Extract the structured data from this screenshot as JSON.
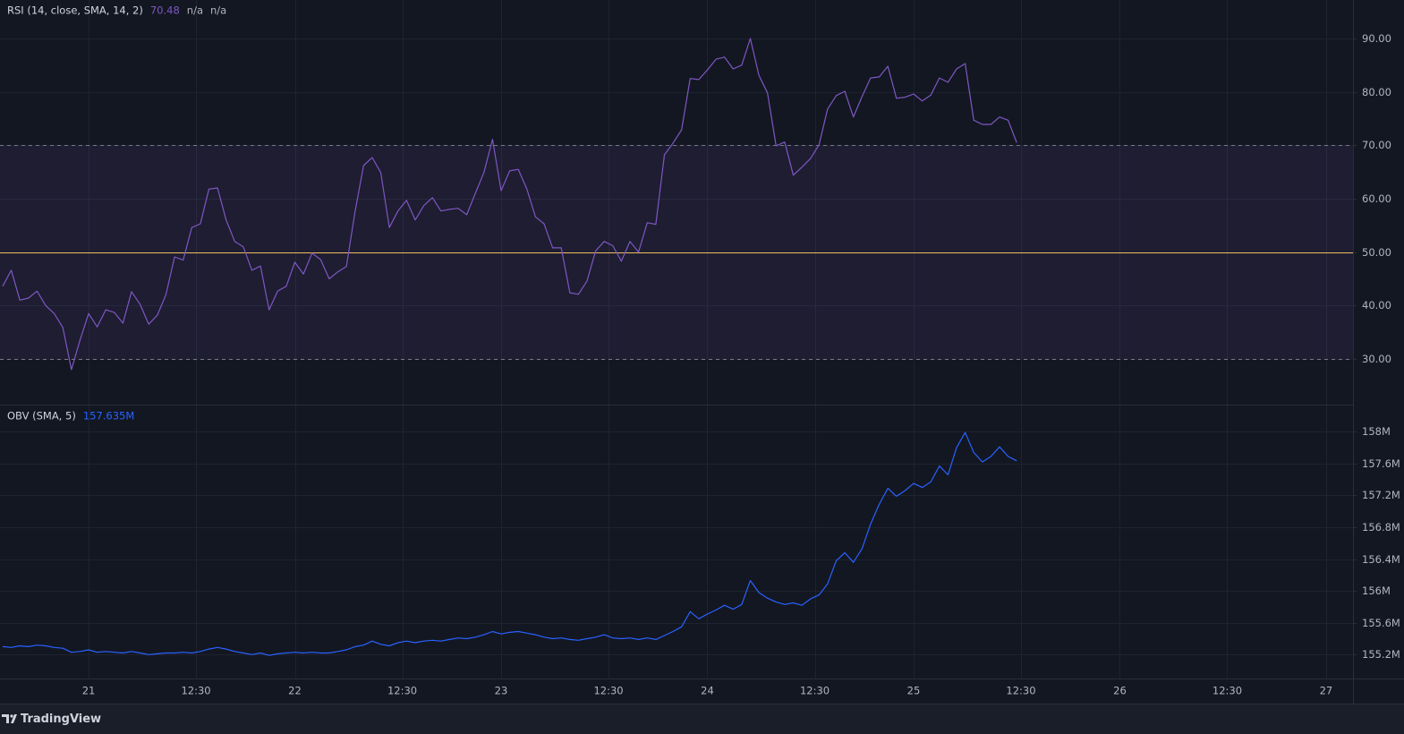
{
  "chart_data": [
    {
      "type": "line",
      "title": "RSI (14, close, SMA, 14, 2)",
      "legend_values": [
        "70.48",
        "n/a",
        "n/a"
      ],
      "color": "#7e57c2",
      "band": [
        30,
        70
      ],
      "midline": 50,
      "band_color": "#7e57c2",
      "midline_color": "#f0c060",
      "xlim": [
        -10.31,
        147.13
      ],
      "ylim": [
        21.45,
        97.2
      ],
      "yticks": [
        {
          "value": 30,
          "label": "30.00"
        },
        {
          "value": 40,
          "label": "40.00"
        },
        {
          "value": 50,
          "label": "50.00"
        },
        {
          "value": 60,
          "label": "60.00"
        },
        {
          "value": 70,
          "label": "70.00"
        },
        {
          "value": 80,
          "label": "80.00"
        },
        {
          "value": 90,
          "label": "90.00"
        }
      ],
      "x": [
        -10,
        -9,
        -8,
        -7,
        -6,
        -5,
        -4,
        -3,
        -2,
        -1,
        0,
        1,
        2,
        3,
        4,
        5,
        6,
        7,
        8,
        9,
        10,
        11,
        12,
        13,
        14,
        15,
        16,
        17,
        18,
        19,
        20,
        21,
        22,
        23,
        24,
        25,
        26,
        27,
        28,
        29,
        30,
        31,
        32,
        33,
        34,
        35,
        36,
        37,
        38,
        39,
        40,
        41,
        42,
        43,
        44,
        45,
        46,
        47,
        48,
        49,
        50,
        51,
        52,
        53,
        54,
        55,
        56,
        57,
        58,
        59,
        60,
        61,
        62,
        63,
        64,
        65,
        66,
        67,
        68,
        69,
        70,
        71,
        72,
        73,
        74,
        75,
        76,
        77,
        78,
        79,
        80,
        81,
        82,
        83,
        84,
        85,
        86,
        87,
        88,
        89,
        90,
        91,
        92,
        93,
        94,
        95,
        96,
        97,
        98,
        99,
        100,
        101,
        102,
        103,
        104,
        105,
        106,
        107,
        108
      ],
      "values": [
        43.6,
        46.6,
        41,
        41.4,
        42.7,
        40,
        38.5,
        35.9,
        28,
        33.5,
        38.5,
        36,
        39.2,
        38.7,
        36.7,
        42.6,
        40.2,
        36.5,
        38.2,
        42,
        49.1,
        48.5,
        54.6,
        55.3,
        61.8,
        62,
        56,
        52,
        51,
        46.6,
        47.4,
        39.2,
        42.7,
        43.6,
        48.1,
        45.9,
        49.8,
        48.6,
        45,
        46.3,
        47.3,
        57.5,
        66.2,
        67.7,
        64.9,
        54.6,
        57.7,
        59.7,
        56,
        58.7,
        60.2,
        57.7,
        58,
        58.2,
        57,
        61,
        64.9,
        71.1,
        61.5,
        65.2,
        65.5,
        61.8,
        56.6,
        55.3,
        50.8,
        50.8,
        42.4,
        42.1,
        44.6,
        50.2,
        52,
        51.2,
        48.3,
        52,
        50,
        55.5,
        55.2,
        68.2,
        70.4,
        72.9,
        82.5,
        82.3,
        84.1,
        86.1,
        86.5,
        84.3,
        85,
        90,
        83.1,
        79.8,
        69.9,
        70.6,
        64.4,
        65.9,
        67.5,
        70.1,
        76.8,
        79.3,
        80.1,
        75.3,
        79.1,
        82.6,
        82.8,
        84.8,
        78.8,
        79,
        79.6,
        78.3,
        79.4,
        82.6,
        81.8,
        84.3,
        85.3,
        74.7,
        73.9,
        73.9,
        75.3,
        74.7,
        70.48
      ]
    },
    {
      "type": "line",
      "title": "OBV (SMA, 5)",
      "legend_values": [
        "157.635M"
      ],
      "color": "#2962ff",
      "xlim": [
        -10.31,
        147.13
      ],
      "ylim": [
        154.9,
        158.33
      ],
      "yticks": [
        {
          "value": 155.2,
          "label": "155.2M"
        },
        {
          "value": 155.6,
          "label": "155.6M"
        },
        {
          "value": 156,
          "label": "156M"
        },
        {
          "value": 156.4,
          "label": "156.4M"
        },
        {
          "value": 156.8,
          "label": "156.8M"
        },
        {
          "value": 157.2,
          "label": "157.2M"
        },
        {
          "value": 157.6,
          "label": "157.6M"
        },
        {
          "value": 158,
          "label": "158M"
        }
      ],
      "xticks": [
        {
          "value": 0,
          "label": "21"
        },
        {
          "value": 12.5,
          "label": "12:30"
        },
        {
          "value": 24,
          "label": "22"
        },
        {
          "value": 36.5,
          "label": "12:30"
        },
        {
          "value": 48,
          "label": "23"
        },
        {
          "value": 60.5,
          "label": "12:30"
        },
        {
          "value": 72,
          "label": "24"
        },
        {
          "value": 84.5,
          "label": "12:30"
        },
        {
          "value": 96,
          "label": "25"
        },
        {
          "value": 108.5,
          "label": "12:30"
        },
        {
          "value": 120,
          "label": "26"
        },
        {
          "value": 132.5,
          "label": "12:30"
        },
        {
          "value": 144,
          "label": "27"
        }
      ],
      "x": [
        -10,
        -9,
        -8,
        -7,
        -6,
        -5,
        -4,
        -3,
        -2,
        -1,
        0,
        1,
        2,
        3,
        4,
        5,
        6,
        7,
        8,
        9,
        10,
        11,
        12,
        13,
        14,
        15,
        16,
        17,
        18,
        19,
        20,
        21,
        22,
        23,
        24,
        25,
        26,
        27,
        28,
        29,
        30,
        31,
        32,
        33,
        34,
        35,
        36,
        37,
        38,
        39,
        40,
        41,
        42,
        43,
        44,
        45,
        46,
        47,
        48,
        49,
        50,
        51,
        52,
        53,
        54,
        55,
        56,
        57,
        58,
        59,
        60,
        61,
        62,
        63,
        64,
        65,
        66,
        67,
        68,
        69,
        70,
        71,
        72,
        73,
        74,
        75,
        76,
        77,
        78,
        79,
        80,
        81,
        82,
        83,
        84,
        85,
        86,
        87,
        88,
        89,
        90,
        91,
        92,
        93,
        94,
        95,
        96,
        97,
        98,
        99,
        100,
        101,
        102,
        103,
        104,
        105,
        106,
        107,
        108
      ],
      "values": [
        155.3,
        155.29,
        155.31,
        155.3,
        155.32,
        155.31,
        155.29,
        155.28,
        155.23,
        155.24,
        155.26,
        155.23,
        155.24,
        155.23,
        155.22,
        155.24,
        155.22,
        155.2,
        155.21,
        155.22,
        155.22,
        155.23,
        155.22,
        155.24,
        155.27,
        155.29,
        155.27,
        155.24,
        155.22,
        155.2,
        155.22,
        155.19,
        155.21,
        155.22,
        155.23,
        155.22,
        155.23,
        155.22,
        155.22,
        155.24,
        155.26,
        155.3,
        155.32,
        155.37,
        155.33,
        155.31,
        155.35,
        155.37,
        155.35,
        155.37,
        155.38,
        155.37,
        155.39,
        155.41,
        155.4,
        155.42,
        155.45,
        155.49,
        155.46,
        155.48,
        155.49,
        155.47,
        155.45,
        155.42,
        155.4,
        155.41,
        155.39,
        155.38,
        155.4,
        155.42,
        155.45,
        155.41,
        155.4,
        155.41,
        155.39,
        155.41,
        155.39,
        155.44,
        155.49,
        155.55,
        155.74,
        155.65,
        155.71,
        155.76,
        155.82,
        155.77,
        155.83,
        156.13,
        155.98,
        155.91,
        155.86,
        155.83,
        155.85,
        155.82,
        155.9,
        155.95,
        156.09,
        156.38,
        156.48,
        156.36,
        156.53,
        156.84,
        157.09,
        157.29,
        157.19,
        157.26,
        157.35,
        157.3,
        157.37,
        157.57,
        157.46,
        157.8,
        157.99,
        157.74,
        157.62,
        157.69,
        157.81,
        157.69,
        157.635
      ]
    }
  ],
  "branding": "TradingView"
}
